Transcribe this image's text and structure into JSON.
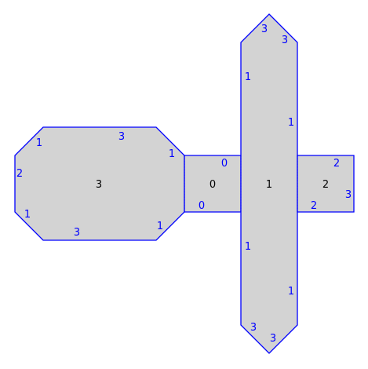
{
  "colors": {
    "fill": "#d3d3d3",
    "edge": "#0000ff",
    "edge_label": "#0000ff",
    "face_label": "#000000"
  },
  "faces": [
    {
      "id": "face-3",
      "label": "3"
    },
    {
      "id": "face-0",
      "label": "0"
    },
    {
      "id": "face-1",
      "label": "1"
    },
    {
      "id": "face-2",
      "label": "2"
    }
  ],
  "edge_labels": [
    {
      "id": "e1",
      "text": "3"
    },
    {
      "id": "e2",
      "text": "3"
    },
    {
      "id": "e3",
      "text": "1"
    },
    {
      "id": "e4",
      "text": "1"
    },
    {
      "id": "e5",
      "text": "0"
    },
    {
      "id": "e6",
      "text": "0"
    },
    {
      "id": "e7",
      "text": "2"
    },
    {
      "id": "e8",
      "text": "3"
    },
    {
      "id": "e9",
      "text": "2"
    },
    {
      "id": "e10",
      "text": "1"
    },
    {
      "id": "e11",
      "text": "1"
    },
    {
      "id": "e12",
      "text": "3"
    },
    {
      "id": "e13",
      "text": "3"
    },
    {
      "id": "e14",
      "text": "1"
    },
    {
      "id": "e15",
      "text": "3"
    },
    {
      "id": "e16",
      "text": "2"
    },
    {
      "id": "e17",
      "text": "1"
    },
    {
      "id": "e18",
      "text": "3"
    },
    {
      "id": "e19",
      "text": "1"
    },
    {
      "id": "e20",
      "text": "1"
    }
  ]
}
